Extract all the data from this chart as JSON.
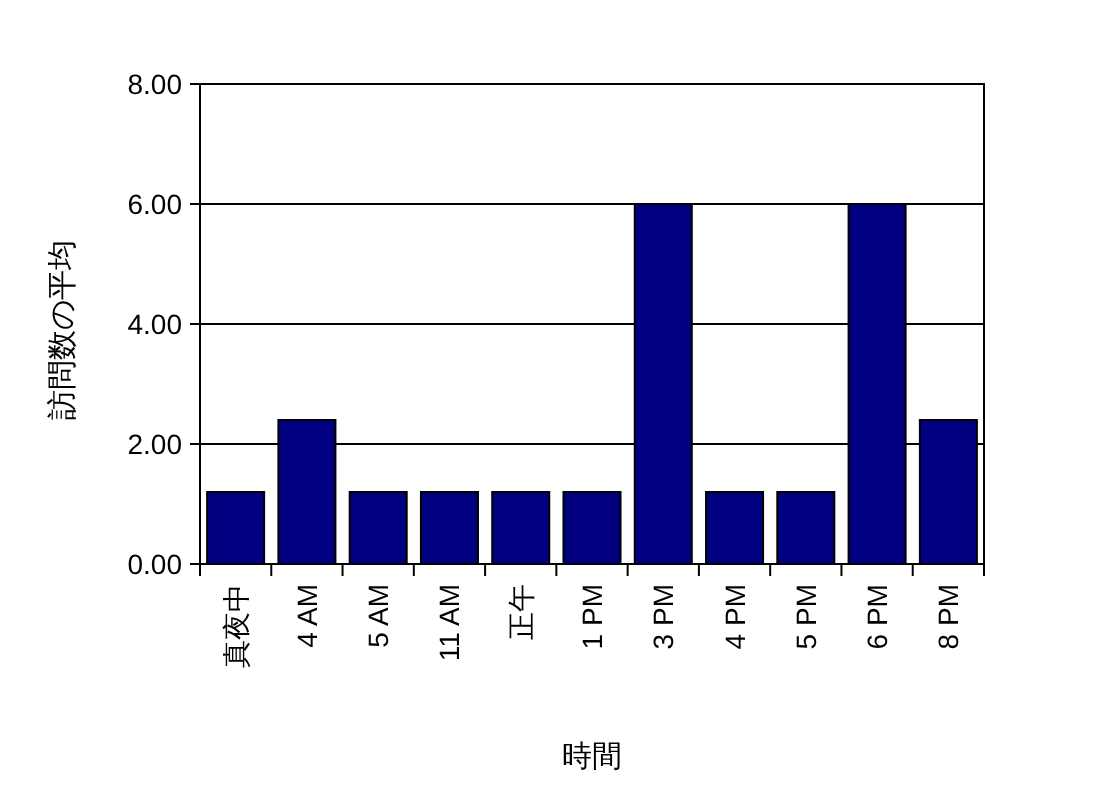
{
  "chart_data": {
    "type": "bar",
    "categories": [
      "真夜中",
      "4 AM",
      "5 AM",
      "11 AM",
      "正午",
      "1 PM",
      "3 PM",
      "4 PM",
      "5 PM",
      "6 PM",
      "8 PM"
    ],
    "values": [
      1.2,
      2.4,
      1.2,
      1.2,
      1.2,
      1.2,
      6.0,
      1.2,
      1.2,
      6.0,
      2.4
    ],
    "color": "#000080",
    "ylim": [
      0,
      8
    ],
    "yticks": [
      {
        "value": 0,
        "label": "0.00"
      },
      {
        "value": 2,
        "label": "2.00"
      },
      {
        "value": 4,
        "label": "4.00"
      },
      {
        "value": 6,
        "label": "6.00"
      },
      {
        "value": 8,
        "label": "8.00"
      }
    ],
    "grid": "y",
    "xlabel": "時間",
    "ylabel": "訪問数の平均"
  }
}
